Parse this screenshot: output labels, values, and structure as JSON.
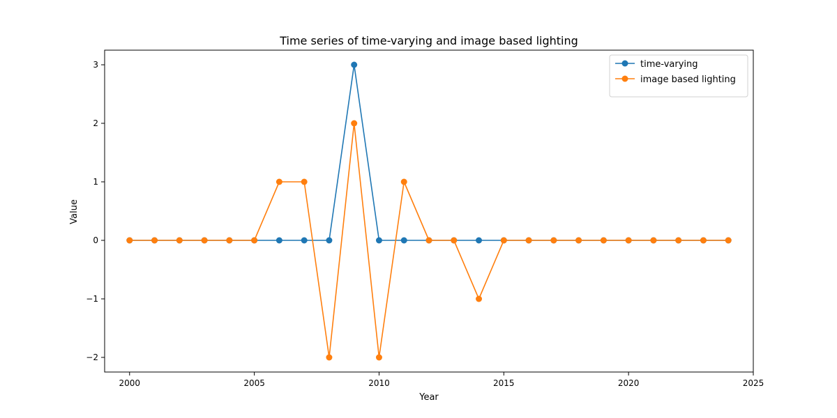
{
  "chart_data": {
    "type": "line",
    "title": "Time series of time-varying and image based lighting",
    "xlabel": "Year",
    "ylabel": "Value",
    "xlim": [
      1999,
      2025
    ],
    "ylim": [
      -2.25,
      3.25
    ],
    "x_ticks": [
      2000,
      2005,
      2010,
      2015,
      2020,
      2025
    ],
    "y_ticks": [
      -2,
      -1,
      0,
      1,
      2,
      3
    ],
    "x_tick_labels": [
      "2000",
      "2005",
      "2010",
      "2015",
      "2020",
      "2025"
    ],
    "y_tick_labels": [
      "−2",
      "−1",
      "0",
      "1",
      "2",
      "3"
    ],
    "grid": false,
    "legend_position": "top-right",
    "x": [
      2000,
      2001,
      2002,
      2003,
      2004,
      2005,
      2006,
      2007,
      2008,
      2009,
      2010,
      2011,
      2012,
      2013,
      2014,
      2015,
      2016,
      2017,
      2018,
      2019,
      2020,
      2021,
      2022,
      2023,
      2024
    ],
    "series": [
      {
        "name": "time-varying",
        "color": "#1f77b4",
        "values": [
          0,
          0,
          0,
          0,
          0,
          0,
          0,
          0,
          0,
          3,
          0,
          0,
          0,
          0,
          0,
          0,
          0,
          0,
          0,
          0,
          0,
          0,
          0,
          0,
          0
        ]
      },
      {
        "name": "image based lighting",
        "color": "#ff7f0e",
        "values": [
          0,
          0,
          0,
          0,
          0,
          0,
          1,
          1,
          -2,
          2,
          -2,
          1,
          0,
          0,
          -1,
          0,
          0,
          0,
          0,
          0,
          0,
          0,
          0,
          0,
          0
        ]
      }
    ]
  }
}
